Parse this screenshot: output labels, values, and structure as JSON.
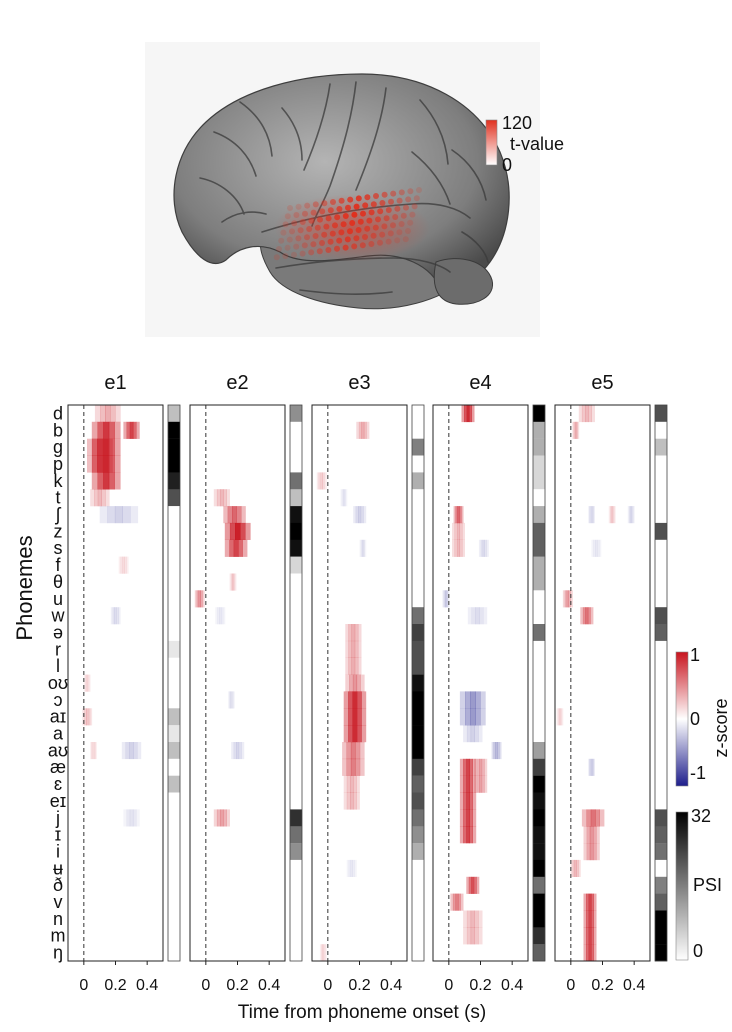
{
  "brain_panel": {
    "colorbar_max": "120",
    "colorbar_label": "t-value",
    "colorbar_min": "0",
    "colors": {
      "cortex": "#8c8c8c",
      "electrode": "#e0301e"
    }
  },
  "chart_data": {
    "type": "heatmap",
    "phonemes": [
      "d",
      "b",
      "g",
      "p",
      "k",
      "t",
      "ʃ",
      "z",
      "s",
      "f",
      "θ",
      "u",
      "w",
      "ə",
      "r",
      "l",
      "oʊ",
      "ɔ",
      "aɪ",
      "a",
      "aʊ",
      "æ",
      "ɛ",
      "eɪ",
      "j",
      "ɪ",
      "i",
      "ʉ",
      "ð",
      "v",
      "n",
      "m",
      "ŋ"
    ],
    "ylabel": "Phonemes",
    "xlabel": "Time from phoneme onset (s)",
    "x_tick_labels": [
      "0",
      "0.2",
      "0.4"
    ],
    "x_ticks": [
      0,
      0.2,
      0.4
    ],
    "x_range": [
      -0.1,
      0.5
    ],
    "onset_marker": 0,
    "zscore_colorbar": {
      "label": "z-score",
      "max": "1",
      "mid": "0",
      "min": "-1",
      "range": [
        -1,
        1
      ]
    },
    "psi_colorbar": {
      "label": "PSI",
      "max": "32",
      "min": "0",
      "range": [
        0,
        32
      ]
    },
    "colors": {
      "positive": "#c8141e",
      "negative": "#1e1e8c"
    },
    "electrodes": [
      {
        "name": "e1",
        "blobs": [
          {
            "rows": [
              0
            ],
            "t": 0.15,
            "w": 0.08,
            "z": 0.35
          },
          {
            "rows": [
              1,
              2,
              3,
              4
            ],
            "t": 0.14,
            "w": 0.09,
            "z": 0.85
          },
          {
            "rows": [
              1
            ],
            "t": 0.3,
            "w": 0.05,
            "z": 0.8
          },
          {
            "rows": [
              2,
              3
            ],
            "t": 0.1,
            "w": 0.08,
            "z": 0.6
          },
          {
            "rows": [
              5
            ],
            "t": 0.1,
            "w": 0.06,
            "z": 0.3
          },
          {
            "rows": [
              6
            ],
            "t": 0.22,
            "w": 0.12,
            "z": -0.2
          },
          {
            "rows": [
              9
            ],
            "t": 0.25,
            "w": 0.03,
            "z": 0.15
          },
          {
            "rows": [
              12
            ],
            "t": 0.2,
            "w": 0.03,
            "z": -0.15
          },
          {
            "rows": [
              16
            ],
            "t": 0.02,
            "w": 0.02,
            "z": 0.15
          },
          {
            "rows": [
              18
            ],
            "t": 0.02,
            "w": 0.03,
            "z": 0.25
          },
          {
            "rows": [
              20
            ],
            "t": 0.3,
            "w": 0.06,
            "z": -0.2
          },
          {
            "rows": [
              20
            ],
            "t": 0.06,
            "w": 0.02,
            "z": 0.15
          },
          {
            "rows": [
              24
            ],
            "t": 0.3,
            "w": 0.05,
            "z": -0.12
          }
        ],
        "psi": [
          8,
          32,
          32,
          32,
          28,
          22,
          0,
          0,
          0,
          0,
          0,
          0,
          0,
          0,
          3,
          0,
          0,
          0,
          8,
          3,
          8,
          0,
          8,
          0,
          0,
          0,
          0,
          0,
          0,
          0,
          0,
          0,
          0
        ]
      },
      {
        "name": "e2",
        "blobs": [
          {
            "rows": [
              5
            ],
            "t": 0.1,
            "w": 0.05,
            "z": 0.3
          },
          {
            "rows": [
              6
            ],
            "t": 0.18,
            "w": 0.07,
            "z": 0.65
          },
          {
            "rows": [
              7
            ],
            "t": 0.2,
            "w": 0.08,
            "z": 0.95
          },
          {
            "rows": [
              8
            ],
            "t": 0.19,
            "w": 0.07,
            "z": 0.8
          },
          {
            "rows": [
              10
            ],
            "t": 0.17,
            "w": 0.02,
            "z": 0.2
          },
          {
            "rows": [
              11
            ],
            "t": -0.04,
            "w": 0.03,
            "z": 0.45
          },
          {
            "rows": [
              12
            ],
            "t": 0.09,
            "w": 0.03,
            "z": -0.1
          },
          {
            "rows": [
              17
            ],
            "t": 0.16,
            "w": 0.02,
            "z": -0.12
          },
          {
            "rows": [
              20
            ],
            "t": 0.2,
            "w": 0.04,
            "z": -0.18
          },
          {
            "rows": [
              24
            ],
            "t": 0.1,
            "w": 0.05,
            "z": 0.4
          }
        ],
        "psi": [
          14,
          0,
          0,
          0,
          18,
          8,
          30,
          32,
          30,
          5,
          0,
          0,
          0,
          0,
          0,
          0,
          0,
          0,
          0,
          0,
          0,
          0,
          0,
          0,
          26,
          18,
          14,
          0,
          0,
          0,
          0,
          0,
          0
        ]
      },
      {
        "name": "e3",
        "blobs": [
          {
            "rows": [
              1
            ],
            "t": 0.22,
            "w": 0.04,
            "z": 0.35
          },
          {
            "rows": [
              4
            ],
            "t": -0.04,
            "w": 0.03,
            "z": 0.2
          },
          {
            "rows": [
              5
            ],
            "t": 0.1,
            "w": 0.02,
            "z": -0.1
          },
          {
            "rows": [
              6
            ],
            "t": 0.2,
            "w": 0.04,
            "z": -0.2
          },
          {
            "rows": [
              8
            ],
            "t": 0.22,
            "w": 0.02,
            "z": -0.12
          },
          {
            "rows": [
              13,
              14,
              15
            ],
            "t": 0.16,
            "w": 0.05,
            "z": 0.35
          },
          {
            "rows": [
              16
            ],
            "t": 0.17,
            "w": 0.06,
            "z": 0.45
          },
          {
            "rows": [
              17,
              18,
              19
            ],
            "t": 0.17,
            "w": 0.07,
            "z": 0.9
          },
          {
            "rows": [
              20,
              21
            ],
            "t": 0.16,
            "w": 0.07,
            "z": 0.55
          },
          {
            "rows": [
              22,
              23
            ],
            "t": 0.15,
            "w": 0.05,
            "z": 0.3
          },
          {
            "rows": [
              27
            ],
            "t": 0.15,
            "w": 0.03,
            "z": -0.1
          },
          {
            "rows": [
              32
            ],
            "t": -0.03,
            "w": 0.02,
            "z": 0.15
          }
        ],
        "psi": [
          0,
          0,
          16,
          0,
          10,
          0,
          0,
          0,
          0,
          0,
          0,
          0,
          18,
          24,
          22,
          22,
          30,
          32,
          32,
          32,
          32,
          24,
          20,
          22,
          18,
          14,
          10,
          0,
          0,
          0,
          0,
          0,
          0
        ]
      },
      {
        "name": "e4",
        "blobs": [
          {
            "rows": [
              0
            ],
            "t": 0.12,
            "w": 0.04,
            "z": 0.9
          },
          {
            "rows": [
              6
            ],
            "t": 0.06,
            "w": 0.03,
            "z": 0.65
          },
          {
            "rows": [
              7,
              8
            ],
            "t": 0.06,
            "w": 0.04,
            "z": 0.3
          },
          {
            "rows": [
              8
            ],
            "t": 0.22,
            "w": 0.03,
            "z": -0.15
          },
          {
            "rows": [
              11
            ],
            "t": -0.02,
            "w": 0.02,
            "z": -0.2
          },
          {
            "rows": [
              12
            ],
            "t": 0.18,
            "w": 0.06,
            "z": -0.15
          },
          {
            "rows": [
              17,
              18
            ],
            "t": 0.15,
            "w": 0.08,
            "z": -0.45
          },
          {
            "rows": [
              19
            ],
            "t": 0.15,
            "w": 0.06,
            "z": -0.2
          },
          {
            "rows": [
              20
            ],
            "t": 0.3,
            "w": 0.03,
            "z": -0.3
          },
          {
            "rows": [
              21,
              22,
              23,
              24,
              25
            ],
            "t": 0.12,
            "w": 0.05,
            "z": 0.8
          },
          {
            "rows": [
              21,
              22
            ],
            "t": 0.2,
            "w": 0.04,
            "z": 0.4
          },
          {
            "rows": [
              28
            ],
            "t": 0.15,
            "w": 0.04,
            "z": 0.75
          },
          {
            "rows": [
              29
            ],
            "t": 0.05,
            "w": 0.04,
            "z": 0.55
          },
          {
            "rows": [
              30,
              31
            ],
            "t": 0.15,
            "w": 0.06,
            "z": 0.3
          }
        ],
        "psi": [
          32,
          10,
          10,
          5,
          5,
          0,
          10,
          20,
          20,
          10,
          10,
          0,
          0,
          18,
          0,
          0,
          0,
          0,
          0,
          0,
          12,
          24,
          32,
          30,
          32,
          30,
          30,
          32,
          18,
          32,
          32,
          26,
          20
        ]
      },
      {
        "name": "e5",
        "blobs": [
          {
            "rows": [
              0
            ],
            "t": 0.1,
            "w": 0.05,
            "z": 0.3
          },
          {
            "rows": [
              1
            ],
            "t": 0.03,
            "w": 0.02,
            "z": 0.3
          },
          {
            "rows": [
              6
            ],
            "t": 0.13,
            "w": 0.02,
            "z": -0.15
          },
          {
            "rows": [
              6
            ],
            "t": 0.26,
            "w": 0.02,
            "z": 0.2
          },
          {
            "rows": [
              6
            ],
            "t": 0.38,
            "w": 0.02,
            "z": -0.15
          },
          {
            "rows": [
              8
            ],
            "t": 0.16,
            "w": 0.03,
            "z": -0.1
          },
          {
            "rows": [
              11
            ],
            "t": -0.02,
            "w": 0.03,
            "z": 0.4
          },
          {
            "rows": [
              12
            ],
            "t": 0.1,
            "w": 0.04,
            "z": 0.6
          },
          {
            "rows": [
              18
            ],
            "t": -0.07,
            "w": 0.02,
            "z": 0.15
          },
          {
            "rows": [
              21
            ],
            "t": 0.13,
            "w": 0.02,
            "z": -0.2
          },
          {
            "rows": [
              24
            ],
            "t": 0.14,
            "w": 0.07,
            "z": 0.6
          },
          {
            "rows": [
              25,
              26
            ],
            "t": 0.13,
            "w": 0.05,
            "z": 0.45
          },
          {
            "rows": [
              27
            ],
            "t": 0.03,
            "w": 0.03,
            "z": 0.3
          },
          {
            "rows": [
              29,
              30,
              31,
              32
            ],
            "t": 0.12,
            "w": 0.04,
            "z": 0.8
          }
        ],
        "psi": [
          22,
          0,
          8,
          0,
          0,
          0,
          0,
          22,
          0,
          0,
          0,
          0,
          22,
          20,
          0,
          0,
          0,
          0,
          0,
          0,
          0,
          0,
          0,
          0,
          22,
          20,
          18,
          0,
          16,
          20,
          32,
          32,
          32
        ]
      }
    ]
  }
}
